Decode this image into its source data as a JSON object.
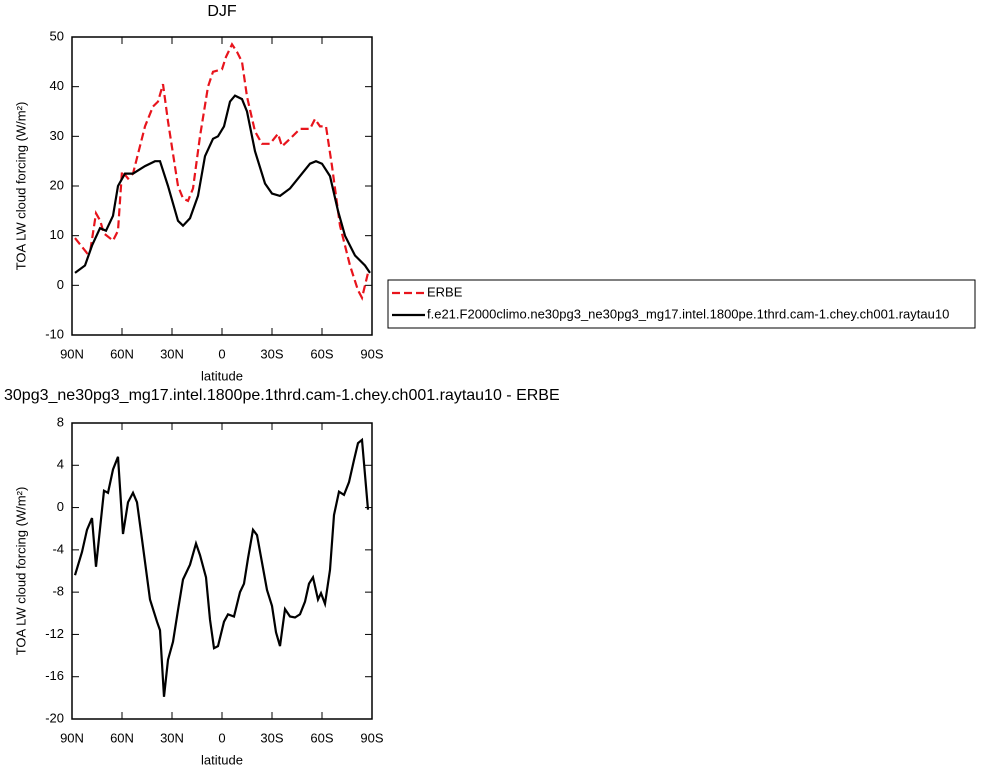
{
  "chart_data": [
    {
      "type": "line",
      "title": "DJF",
      "xlabel": "latitude",
      "ylabel": "TOA LW cloud forcing (W/m²)",
      "xlim": [
        90,
        -90
      ],
      "xticks": [
        {
          "value": 90,
          "label": "90N"
        },
        {
          "value": 60,
          "label": "60N"
        },
        {
          "value": 30,
          "label": "30N"
        },
        0,
        {
          "value": -30,
          "label": "30S"
        },
        {
          "value": -60,
          "label": "60S"
        },
        {
          "value": -90,
          "label": "90S"
        }
      ],
      "ylim": [
        -10,
        50
      ],
      "yticks": [
        -10,
        0,
        10,
        20,
        30,
        40,
        50
      ],
      "series": [
        {
          "name": "ERBE",
          "color": "#e8141c",
          "style": "dashed",
          "x": [
            88.2,
            81,
            79,
            75.6,
            73,
            71,
            65.4,
            62.4,
            60,
            56.4,
            53.4,
            46.2,
            41.4,
            38.4,
            35.4,
            32.4,
            26.4,
            23.4,
            20.4,
            17.4,
            13.2,
            8.4,
            5.4,
            0,
            -2.4,
            -6,
            -9,
            -12,
            -15,
            -19.8,
            -24,
            -28.8,
            -33.6,
            -36,
            -40.8,
            -46.8,
            -52.8,
            -55.8,
            -58.8,
            -62.4,
            -66,
            -70.8,
            -76.8,
            -81.6,
            -84,
            -87.6
          ],
          "values": [
            9.5,
            6.5,
            7,
            14.5,
            13,
            10.5,
            9,
            11,
            23,
            21.5,
            22.5,
            32,
            36,
            37,
            40.5,
            33,
            20,
            17.5,
            17,
            19.5,
            30,
            40,
            43,
            43.5,
            46,
            48.5,
            47,
            45,
            38,
            31,
            28.5,
            28.5,
            30.5,
            28,
            29.5,
            31.5,
            31.5,
            33.5,
            32,
            32,
            24,
            12,
            4,
            -1,
            -2.5,
            2.5
          ]
        },
        {
          "name": "f.e21.F2000climo.ne30pg3_ne30pg3_mg17.intel.1800pe.1thrd.cam-1.chey.ch001.raytau10",
          "color": "#000000",
          "style": "solid",
          "x": [
            88.2,
            82.2,
            78,
            73.2,
            69.6,
            65.4,
            62.4,
            58.2,
            53.4,
            46.2,
            40.2,
            37.2,
            32.4,
            26.4,
            23.4,
            19.2,
            14.4,
            10.2,
            5.4,
            2.4,
            -1.2,
            -4.8,
            -7.8,
            -12,
            -15,
            -19.8,
            -25.8,
            -30,
            -34.8,
            -40.8,
            -46.8,
            -52.8,
            -56.4,
            -60,
            -64.8,
            -69.6,
            -73.8,
            -79.8,
            -85.8,
            -88.8
          ],
          "values": [
            2.5,
            4,
            8,
            11.5,
            11,
            14,
            20,
            22.5,
            22.5,
            24,
            25,
            25,
            20,
            13,
            12,
            13.5,
            18,
            26,
            29.5,
            30,
            32,
            37,
            38.2,
            37.5,
            35,
            27,
            20.5,
            18.5,
            18,
            19.5,
            22,
            24.5,
            25,
            24.5,
            22,
            15,
            10,
            6,
            4,
            2.5
          ]
        }
      ]
    },
    {
      "type": "line",
      "title": "30pg3_ne30pg3_mg17.intel.1800pe.1thrd.cam-1.chey.ch001.raytau10 - ERBE",
      "xlabel": "latitude",
      "ylabel": "TOA LW cloud forcing (W/m²)",
      "xlim": [
        90,
        -90
      ],
      "xticks": [
        {
          "value": 90,
          "label": "90N"
        },
        {
          "value": 60,
          "label": "60N"
        },
        {
          "value": 30,
          "label": "30N"
        },
        0,
        {
          "value": -30,
          "label": "30S"
        },
        {
          "value": -60,
          "label": "60S"
        },
        {
          "value": -90,
          "label": "90S"
        }
      ],
      "ylim": [
        -20,
        8
      ],
      "yticks": [
        -20,
        -16,
        -12,
        -8,
        -4,
        0,
        4,
        8
      ],
      "series": [
        {
          "color": "#000000",
          "style": "solid",
          "x": [
            88.2,
            84,
            81,
            78,
            75.6,
            70.8,
            68.4,
            65.4,
            62.4,
            59.4,
            56.4,
            53.4,
            51,
            48,
            43.2,
            39,
            37.2,
            34.8,
            32.4,
            29.4,
            26.4,
            23.4,
            19.2,
            15.6,
            13.2,
            9.6,
            7.2,
            4.8,
            2.4,
            -1.2,
            -3.6,
            -7.2,
            -10.8,
            -13.2,
            -15.6,
            -18.6,
            -21,
            -24,
            -27,
            -30,
            -32.4,
            -34.8,
            -37.8,
            -40.8,
            -43.8,
            -46.8,
            -49.8,
            -52.2,
            -54.6,
            -57.6,
            -59.4,
            -61.8,
            -64.8,
            -67.2,
            -70.2,
            -73.2,
            -76.2,
            -79.2,
            -81.6,
            -84,
            -87.6
          ],
          "values": [
            -6.4,
            -4.2,
            -2.1,
            -1,
            -5.6,
            1.6,
            1.4,
            3.6,
            4.8,
            -2.5,
            0.5,
            1.4,
            0.5,
            -3,
            -8.7,
            -10.8,
            -11.6,
            -17.9,
            -14.4,
            -12.7,
            -9.7,
            -6.8,
            -5.4,
            -3.4,
            -4.5,
            -6.6,
            -10.6,
            -13.3,
            -13.1,
            -10.8,
            -10.1,
            -10.3,
            -8,
            -7.2,
            -4.8,
            -2.1,
            -2.6,
            -5.2,
            -7.8,
            -9.3,
            -11.8,
            -13.1,
            -9.6,
            -10.3,
            -10.4,
            -10.1,
            -8.9,
            -7.2,
            -6.6,
            -8.7,
            -8.1,
            -9.1,
            -5.9,
            -0.7,
            1.5,
            1.2,
            2.4,
            4.5,
            6.1,
            6.4,
            -0.2
          ]
        }
      ]
    }
  ]
}
